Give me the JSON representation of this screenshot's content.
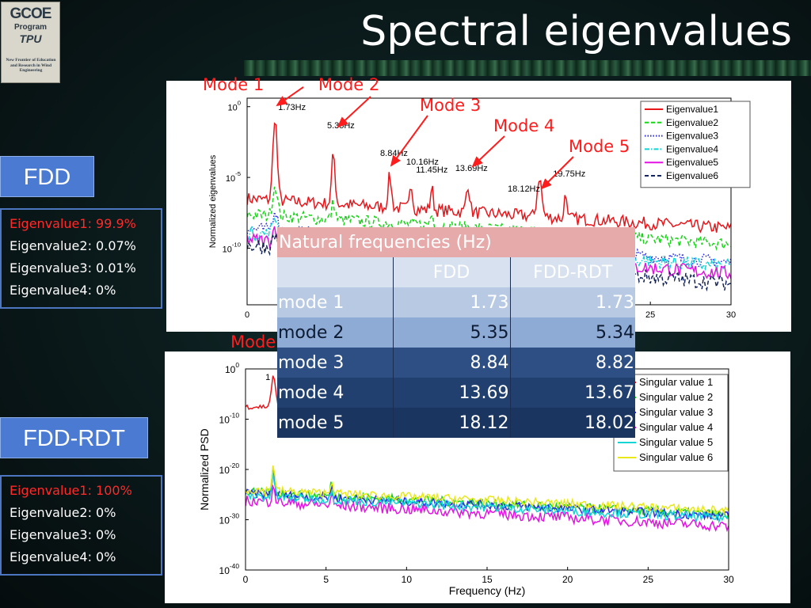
{
  "logo": {
    "line1": "GCOE",
    "line2": "Program",
    "line3": "TPU",
    "tagline": "New Frontier of Education and Research in Wind Engineering"
  },
  "slide_title": "Spectral eigenvalues",
  "fdd": {
    "label": "FDD",
    "eigenvalues": [
      "Eigenvalue1: 99.9%",
      "Eigenvalue2: 0.07%",
      "Eigenvalue3: 0.01%",
      "Eigenvalue4: 0%"
    ]
  },
  "fdd_rdt": {
    "label": "FDD-RDT",
    "eigenvalues": [
      "Eigenvalue1: 100%",
      "Eigenvalue2: 0%",
      "Eigenvalue3: 0%",
      "Eigenvalue4: 0%"
    ]
  },
  "mode_annotations": [
    "Mode 1",
    "Mode 2",
    "Mode 3",
    "Mode 4",
    "Mode 5"
  ],
  "lower_mode_fragment": "Mode",
  "colors": {
    "annotation": "#ff1c1c",
    "box_blue": "#4a7ad1",
    "table_header": "#e6aaaa"
  },
  "table": {
    "title": "Natural frequencies (Hz)",
    "columns": [
      "",
      "FDD",
      "FDD-RDT"
    ],
    "rows": [
      {
        "mode": "mode 1",
        "fdd": "1.73",
        "rdt": "1.73"
      },
      {
        "mode": "mode 2",
        "fdd": "5.35",
        "rdt": "5.34"
      },
      {
        "mode": "mode 3",
        "fdd": "8.84",
        "rdt": "8.82"
      },
      {
        "mode": "mode 4",
        "fdd": "13.69",
        "rdt": "13.67"
      },
      {
        "mode": "mode 5",
        "fdd": "18.12",
        "rdt": "18.02"
      }
    ]
  },
  "chart_data": [
    {
      "type": "line",
      "ylabel": "Normalized eigenvalues",
      "xlabel": "",
      "xlim": [
        0,
        30
      ],
      "y_log": true,
      "x_ticks": [
        "0",
        "25",
        "30"
      ],
      "y_ticks": [
        {
          "base": "10",
          "exp": "0"
        },
        {
          "base": "10",
          "exp": "-5"
        },
        {
          "base": "10",
          "exp": "-10"
        }
      ],
      "legend_position": "top-right",
      "series": [
        {
          "name": "Eigenvalue1",
          "color": "#e8161b",
          "dash": "solid"
        },
        {
          "name": "Eigenvalue2",
          "color": "#19d419",
          "dash": "dashed"
        },
        {
          "name": "Eigenvalue3",
          "color": "#2a2ae6",
          "dash": "dotted"
        },
        {
          "name": "Eigenvalue4",
          "color": "#12d4d4",
          "dash": "dashdot"
        },
        {
          "name": "Eigenvalue5",
          "color": "#e314e3",
          "dash": "solid"
        },
        {
          "name": "Eigenvalue6",
          "color": "#14245c",
          "dash": "dashed"
        }
      ],
      "peak_labels": [
        {
          "text": "1.73Hz",
          "x": 1.73
        },
        {
          "text": "5.35Hz",
          "x": 5.35
        },
        {
          "text": "8.84Hz",
          "x": 8.84
        },
        {
          "text": "10.16Hz",
          "x": 10.16
        },
        {
          "text": "11.45Hz",
          "x": 11.45
        },
        {
          "text": "13.69Hz",
          "x": 13.69
        },
        {
          "text": "18.12Hz",
          "x": 18.12
        },
        {
          "text": "19.75Hz",
          "x": 19.75
        }
      ]
    },
    {
      "type": "line",
      "ylabel": "Normalized PSD",
      "xlabel": "Frequency (Hz)",
      "xlim": [
        0,
        30
      ],
      "y_log": true,
      "x_ticks": [
        "0",
        "5",
        "10",
        "15",
        "20",
        "25",
        "30"
      ],
      "y_ticks": [
        {
          "base": "10",
          "exp": "0"
        },
        {
          "base": "10",
          "exp": "-10"
        },
        {
          "base": "10",
          "exp": "-20"
        },
        {
          "base": "10",
          "exp": "-30"
        },
        {
          "base": "10",
          "exp": "-40"
        }
      ],
      "legend_position": "top-right",
      "series": [
        {
          "name": "Singular value 1",
          "color": "#e8161b"
        },
        {
          "name": "Singular value 2",
          "color": "#19d419"
        },
        {
          "name": "Singular value 3",
          "color": "#2a2ae6"
        },
        {
          "name": "Singular value 4",
          "color": "#e314e3"
        },
        {
          "name": "Singular value 5",
          "color": "#12d4d4"
        },
        {
          "name": "Singular value 6",
          "color": "#e8e81a"
        }
      ],
      "peak_labels": [
        {
          "text": "1",
          "x": 1.73
        }
      ]
    }
  ]
}
